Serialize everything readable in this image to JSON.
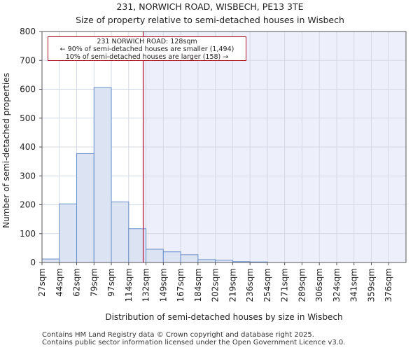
{
  "title": "231, NORWICH ROAD, WISBECH, PE13 3TE",
  "subtitle": "Size of property relative to semi-detached houses in Wisbech",
  "annotation": {
    "line1": "231 NORWICH ROAD: 128sqm",
    "line2": "← 90% of semi-detached houses are smaller (1,494)",
    "line3": "10% of semi-detached houses are larger (158) →"
  },
  "footer": {
    "line1": "Contains HM Land Registry data © Crown copyright and database right 2025.",
    "line2": "Contains public sector information licensed under the Open Government Licence v3.0."
  },
  "colors": {
    "bar_fill": "#dce4f4",
    "bar_stroke": "#6a8fc9",
    "highlight_bg": "#edf0fa",
    "marker": "#b0122b",
    "grid": "#d4d9e6"
  },
  "chart_data": {
    "type": "bar",
    "title": "231, NORWICH ROAD, WISBECH, PE13 3TE",
    "subtitle": "Size of property relative to semi-detached houses in Wisbech",
    "xlabel": "Distribution of semi-detached houses by size in Wisbech",
    "ylabel": "Number of semi-detached properties",
    "categories": [
      "27sqm",
      "44sqm",
      "62sqm",
      "79sqm",
      "97sqm",
      "114sqm",
      "132sqm",
      "149sqm",
      "167sqm",
      "184sqm",
      "202sqm",
      "219sqm",
      "236sqm",
      "254sqm",
      "271sqm",
      "289sqm",
      "306sqm",
      "324sqm",
      "341sqm",
      "359sqm",
      "376sqm"
    ],
    "values": [
      12,
      203,
      377,
      606,
      210,
      117,
      46,
      37,
      27,
      10,
      8,
      3,
      2,
      0,
      0,
      0,
      0,
      0,
      0,
      0,
      0
    ],
    "ylim": [
      0,
      800
    ],
    "yticks": [
      0,
      100,
      200,
      300,
      400,
      500,
      600,
      700,
      800
    ],
    "property_value_sqm": 128,
    "grid": true
  }
}
